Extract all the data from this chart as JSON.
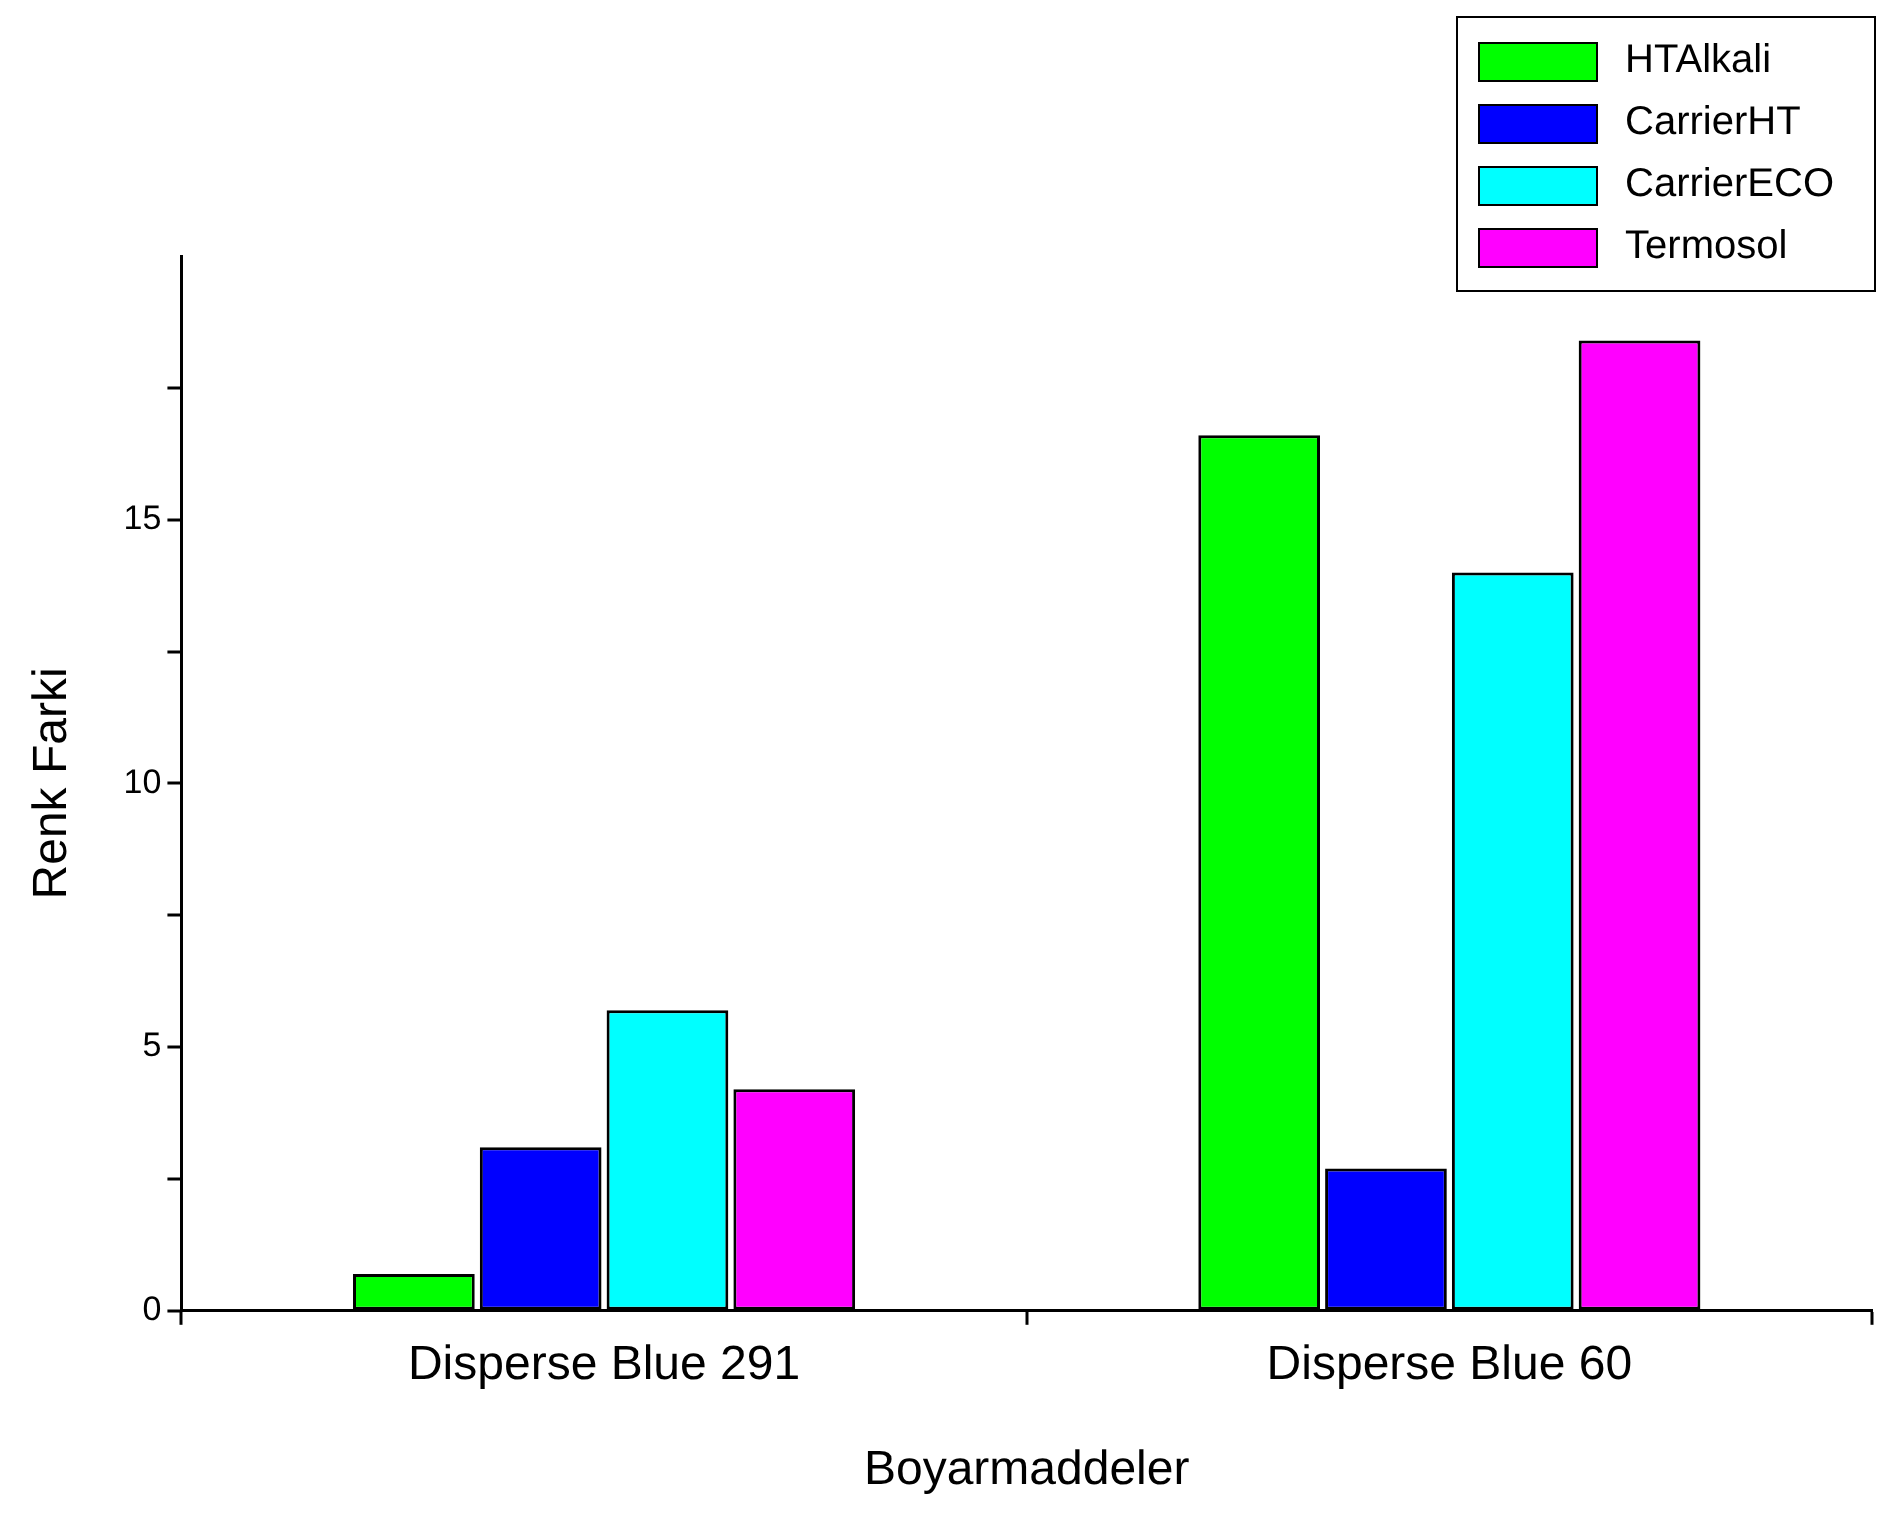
{
  "chart_data": {
    "type": "bar",
    "xlabel": "Boyarmaddeler",
    "ylabel": "Renk Farki",
    "categories": [
      "Disperse Blue 291",
      "Disperse Blue 60"
    ],
    "series": [
      {
        "name": "HTAlkali",
        "color": "#00ff00",
        "values": [
          0.7,
          16.6
        ]
      },
      {
        "name": "CarrierHT",
        "color": "#0000ff",
        "values": [
          3.1,
          2.7
        ]
      },
      {
        "name": "CarrierECO",
        "color": "#00ffff",
        "values": [
          5.7,
          14.0
        ]
      },
      {
        "name": "Termosol",
        "color": "#ff00ff",
        "values": [
          4.2,
          18.4
        ]
      }
    ],
    "ylim": [
      0,
      20
    ],
    "yticks": [
      0,
      {
        "value": 2.5,
        "label": null
      },
      5,
      {
        "value": 7.5,
        "label": null
      },
      10,
      {
        "value": 12.5,
        "label": null
      },
      15,
      {
        "value": 17.5,
        "label": null
      }
    ],
    "grid": false,
    "legend": "top right"
  }
}
